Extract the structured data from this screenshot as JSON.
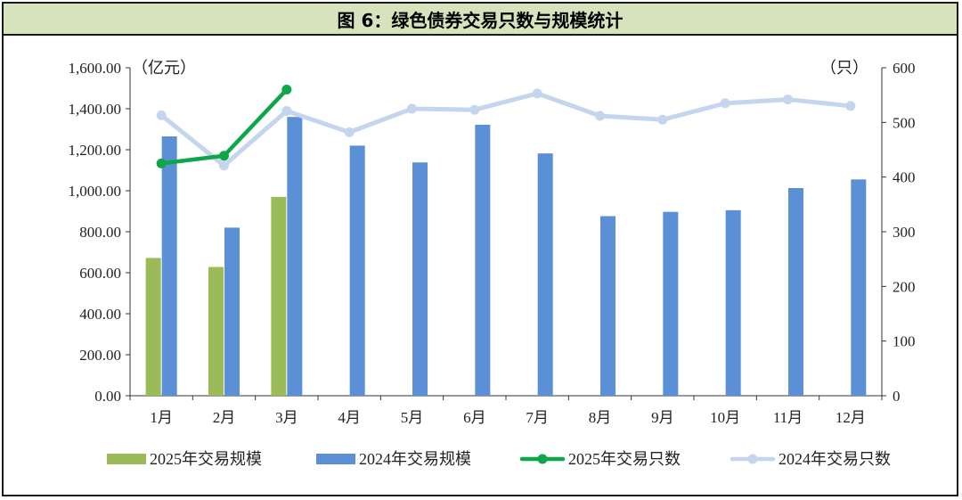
{
  "title": "图 6：绿色债券交易只数与规模统计",
  "chart_data": {
    "type": "bar+line",
    "title": "图 6：绿色债券交易只数与规模统计",
    "categories": [
      "1月",
      "2月",
      "3月",
      "4月",
      "5月",
      "6月",
      "7月",
      "8月",
      "9月",
      "10月",
      "11月",
      "12月"
    ],
    "left_axis": {
      "unit_label": "（亿元）",
      "range": [
        0,
        1600
      ],
      "ticks": [
        "0.00",
        "200.00",
        "400.00",
        "600.00",
        "800.00",
        "1,000.00",
        "1,200.00",
        "1,400.00",
        "1,600.00"
      ]
    },
    "right_axis": {
      "unit_label": "（只）",
      "range": [
        0,
        600
      ],
      "ticks": [
        "0",
        "100",
        "200",
        "300",
        "400",
        "500",
        "600"
      ]
    },
    "bar_series": [
      {
        "name": "2025年交易规模",
        "color": "#9bbb59",
        "values": [
          672,
          628,
          970,
          null,
          null,
          null,
          null,
          null,
          null,
          null,
          null,
          null
        ]
      },
      {
        "name": "2024年交易规模",
        "color": "#5b8fd6",
        "values": [
          1265,
          820,
          1360,
          1220,
          1138,
          1322,
          1182,
          876,
          897,
          905,
          1013,
          1055
        ]
      }
    ],
    "line_series": [
      {
        "name": "2025年交易只数",
        "color": "#0ea64a",
        "values": [
          425,
          439,
          560,
          null,
          null,
          null,
          null,
          null,
          null,
          null,
          null,
          null
        ]
      },
      {
        "name": "2024年交易只数",
        "color": "#c5d5ee",
        "values": [
          513,
          421,
          521,
          482,
          525,
          523,
          553,
          512,
          505,
          535,
          542,
          530
        ]
      }
    ],
    "legend_position": "bottom",
    "grid": false
  }
}
